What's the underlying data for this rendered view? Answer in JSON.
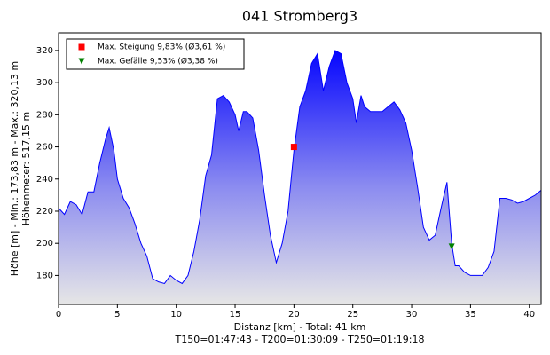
{
  "chart_data": {
    "type": "area",
    "title": "041 Stromberg3",
    "ylabel": "Höhe [m] - Min.: 173,83 m - Max.: 320,13 m",
    "ylabel2": "Höhenmeter: 517,15 m",
    "xlabel": "Distanz [km] - Total: 41 km",
    "subxlabel": "T150=01:47:43 - T200=01:30:09 - T250=01:19:18",
    "color": "#0000ff",
    "x": [
      0,
      0.5,
      1,
      1.5,
      2,
      2.5,
      3,
      3.5,
      4,
      4.3,
      4.7,
      5,
      5.5,
      6,
      6.5,
      7,
      7.5,
      8,
      8.5,
      9,
      9.5,
      10,
      10.5,
      11,
      11.5,
      12,
      12.5,
      13,
      13.5,
      14,
      14.5,
      15,
      15.3,
      15.7,
      16,
      16.5,
      17,
      17.5,
      18,
      18.5,
      19,
      19.5,
      20,
      20.5,
      21,
      21.5,
      22,
      22.5,
      23,
      23.5,
      24,
      24.5,
      25,
      25.3,
      25.7,
      26,
      26.5,
      27,
      27.5,
      28,
      28.5,
      29,
      29.5,
      30,
      30.5,
      31,
      31.5,
      32,
      32.5,
      33,
      33.4,
      33.7,
      34,
      34.5,
      35,
      35.5,
      36,
      36.5,
      37,
      37.5,
      38,
      38.5,
      39,
      39.5,
      40,
      40.5,
      41
    ],
    "values": [
      222,
      218,
      226,
      224,
      218,
      232,
      232,
      250,
      265,
      272,
      258,
      240,
      228,
      222,
      212,
      200,
      192,
      178,
      176,
      175,
      180,
      177,
      175,
      180,
      195,
      215,
      242,
      255,
      290,
      292,
      288,
      280,
      270,
      282,
      282,
      278,
      258,
      230,
      205,
      188,
      200,
      220,
      258,
      285,
      295,
      312,
      318,
      295,
      310,
      320,
      318,
      300,
      290,
      275,
      292,
      285,
      282,
      282,
      282,
      285,
      288,
      283,
      275,
      258,
      235,
      210,
      202,
      205,
      222,
      238,
      200,
      186,
      186,
      182,
      180,
      180,
      180,
      185,
      195,
      228,
      228,
      227,
      225,
      226,
      228,
      230,
      233
    ],
    "markers": [
      {
        "label": "Max. Steigung 9,83% (Ø3,61 %)",
        "color": "#ff0000",
        "shape": "square",
        "x": 20,
        "y": 260
      },
      {
        "label": "Max. Gefälle 9,53% (Ø3,38 %)",
        "color": "#008000",
        "shape": "triangle",
        "x": 33.4,
        "y": 198
      }
    ],
    "xlim": [
      0,
      41
    ],
    "xticks": [
      0,
      5,
      10,
      15,
      20,
      25,
      30,
      35,
      40
    ],
    "ylim": [
      162,
      331
    ],
    "yticks": [
      180,
      200,
      220,
      240,
      260,
      280,
      300,
      320
    ]
  }
}
